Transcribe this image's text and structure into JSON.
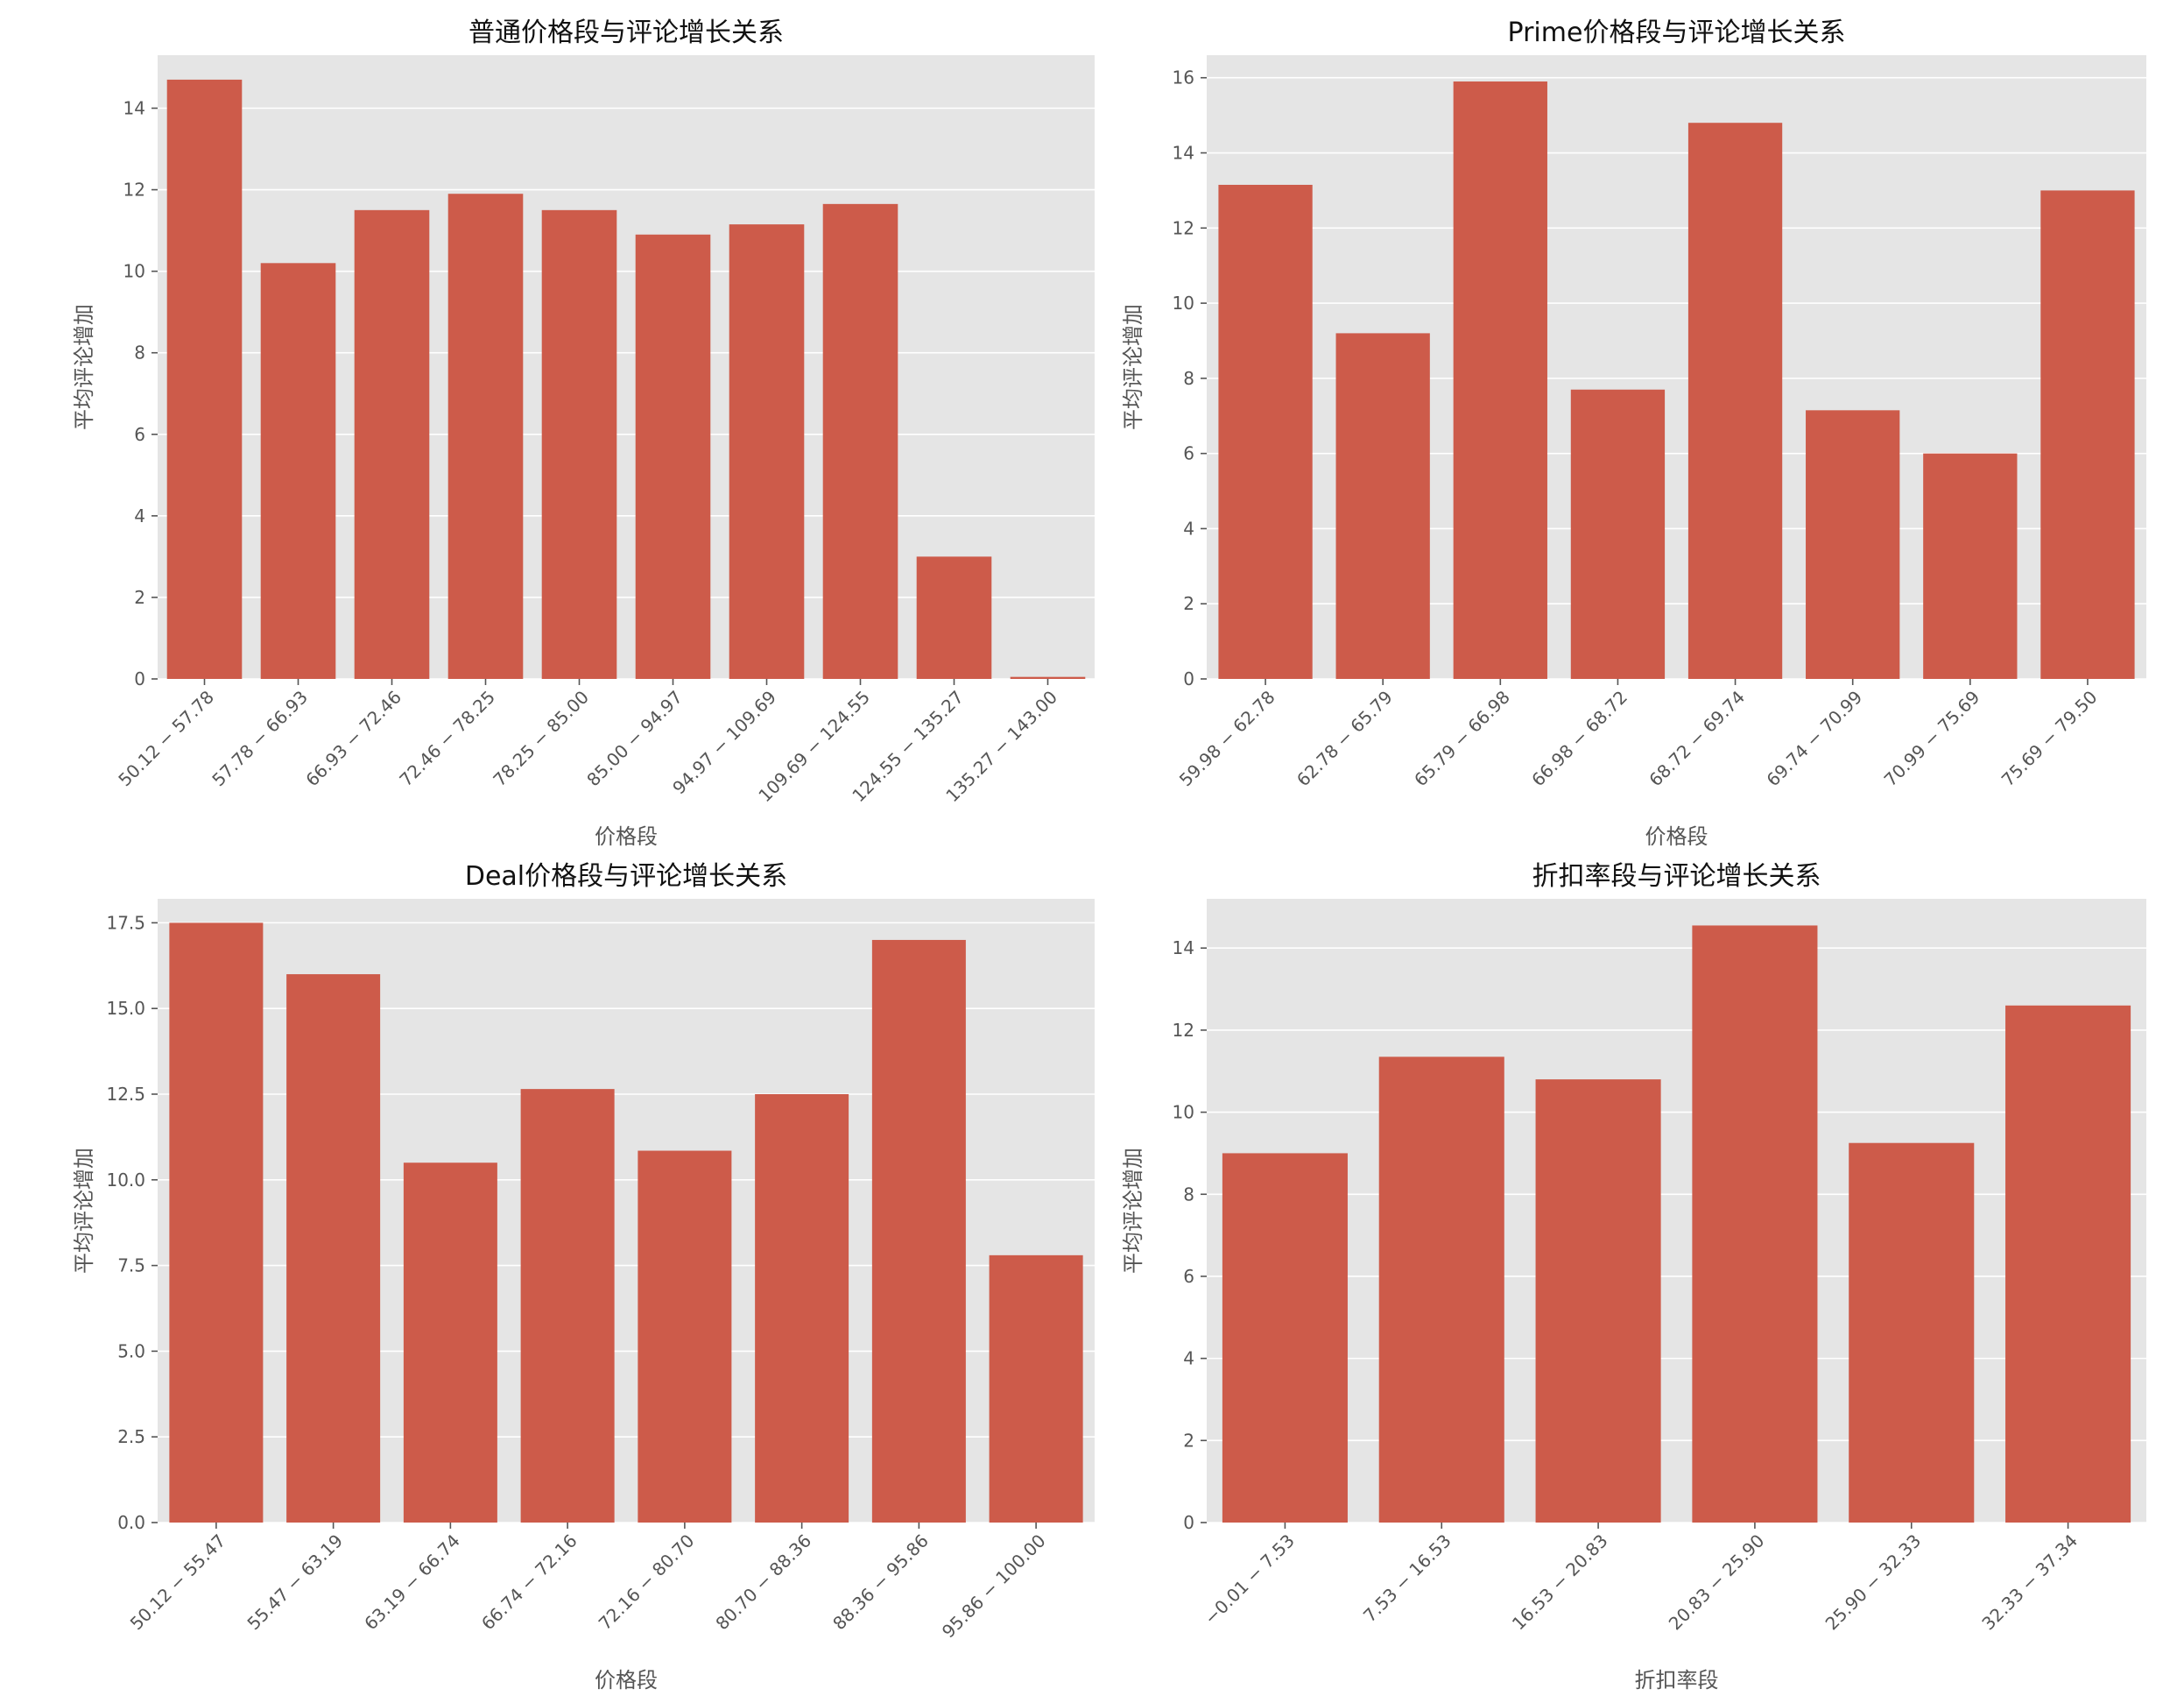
{
  "chart_data": [
    {
      "type": "bar",
      "title": "普通价格段与评论增长关系",
      "xlabel": "价格段",
      "ylabel": "平均评论增加",
      "categories": [
        "50.12 − 57.78",
        "57.78 − 66.93",
        "66.93 − 72.46",
        "72.46 − 78.25",
        "78.25 − 85.00",
        "85.00 − 94.97",
        "94.97 − 109.69",
        "109.69 − 124.55",
        "124.55 − 135.27",
        "135.27 − 143.00"
      ],
      "values": [
        14.7,
        10.2,
        11.5,
        11.9,
        11.5,
        10.9,
        11.15,
        11.65,
        3.0,
        0.05
      ],
      "ylim": [
        0,
        15.3
      ],
      "yticks": [
        "0",
        "2",
        "4",
        "6",
        "8",
        "10",
        "12",
        "14"
      ],
      "ytick_values": [
        0,
        2,
        4,
        6,
        8,
        10,
        12,
        14
      ],
      "grid": true,
      "color": "#cd5b4a"
    },
    {
      "type": "bar",
      "title": "Prime价格段与评论增长关系",
      "xlabel": "价格段",
      "ylabel": "平均评论增加",
      "categories": [
        "59.98 − 62.78",
        "62.78 − 65.79",
        "65.79 − 66.98",
        "66.98 − 68.72",
        "68.72 − 69.74",
        "69.74 − 70.99",
        "70.99 − 75.69",
        "75.69 − 79.50"
      ],
      "values": [
        13.15,
        9.2,
        15.9,
        7.7,
        14.8,
        7.15,
        6.0,
        13.0
      ],
      "ylim": [
        0,
        16.6
      ],
      "yticks": [
        "0",
        "2",
        "4",
        "6",
        "8",
        "10",
        "12",
        "14",
        "16"
      ],
      "ytick_values": [
        0,
        2,
        4,
        6,
        8,
        10,
        12,
        14,
        16
      ],
      "grid": true,
      "color": "#cd5b4a"
    },
    {
      "type": "bar",
      "title": "Deal价格段与评论增长关系",
      "xlabel": "价格段",
      "ylabel": "平均评论增加",
      "categories": [
        "50.12 − 55.47",
        "55.47 − 63.19",
        "63.19 − 66.74",
        "66.74 − 72.16",
        "72.16 − 80.70",
        "80.70 − 88.36",
        "88.36 − 95.86",
        "95.86 − 100.00"
      ],
      "values": [
        17.5,
        16.0,
        10.5,
        12.65,
        10.85,
        12.5,
        17.0,
        7.8
      ],
      "ylim": [
        0,
        18.2
      ],
      "yticks": [
        "0.0",
        "2.5",
        "5.0",
        "7.5",
        "10.0",
        "12.5",
        "15.0",
        "17.5"
      ],
      "ytick_values": [
        0,
        2.5,
        5,
        7.5,
        10,
        12.5,
        15,
        17.5
      ],
      "grid": true,
      "color": "#cd5b4a"
    },
    {
      "type": "bar",
      "title": "折扣率段与评论增长关系",
      "xlabel": "折扣率段",
      "ylabel": "平均评论增加",
      "categories": [
        "−0.01 − 7.53",
        "7.53 − 16.53",
        "16.53 − 20.83",
        "20.83 − 25.90",
        "25.90 − 32.33",
        "32.33 − 37.34"
      ],
      "values": [
        9.0,
        11.35,
        10.8,
        14.55,
        9.25,
        12.6
      ],
      "ylim": [
        0,
        15.2
      ],
      "yticks": [
        "0",
        "2",
        "4",
        "6",
        "8",
        "10",
        "12",
        "14"
      ],
      "ytick_values": [
        0,
        2,
        4,
        6,
        8,
        10,
        12,
        14
      ],
      "grid": true,
      "color": "#cd5b4a"
    }
  ]
}
